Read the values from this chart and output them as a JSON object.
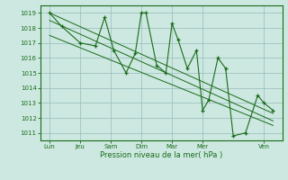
{
  "bg_color": "#cce8e0",
  "grid_color": "#99bbbb",
  "line_color": "#1a6b1a",
  "marker_color": "#1a6b1a",
  "x_tick_labels": [
    "Lun",
    "Jeu",
    "Sam",
    "Dim",
    "Mar",
    "Mer",
    "Ven"
  ],
  "x_tick_positions": [
    0,
    1,
    2,
    3,
    4,
    5,
    7
  ],
  "xlabel": "Pression niveau de la mer( hPa )",
  "ylim": [
    1010.5,
    1019.5
  ],
  "yticks": [
    1011,
    1012,
    1013,
    1014,
    1015,
    1016,
    1017,
    1018,
    1019
  ],
  "line_main": {
    "x": [
      0.0,
      0.4,
      1.0,
      1.5,
      1.8,
      2.1,
      2.5,
      2.8,
      3.0,
      3.15,
      3.5,
      3.8,
      4.0,
      4.2,
      4.5,
      4.8,
      5.0,
      5.2,
      5.5,
      5.75,
      6.0,
      6.4,
      6.8,
      7.0,
      7.3
    ],
    "y": [
      1019.0,
      1018.1,
      1017.0,
      1016.8,
      1018.7,
      1016.5,
      1015.0,
      1016.3,
      1019.0,
      1019.0,
      1015.5,
      1015.0,
      1018.3,
      1017.2,
      1015.3,
      1016.5,
      1012.5,
      1013.2,
      1016.0,
      1015.3,
      1010.8,
      1011.0,
      1013.5,
      1013.0,
      1012.5
    ]
  },
  "line_trend1": {
    "x": [
      0.0,
      7.3
    ],
    "y": [
      1019.0,
      1012.3
    ]
  },
  "line_trend2": {
    "x": [
      0.0,
      7.3
    ],
    "y": [
      1018.5,
      1011.8
    ]
  },
  "line_trend3": {
    "x": [
      0.0,
      7.3
    ],
    "y": [
      1017.5,
      1011.5
    ]
  }
}
